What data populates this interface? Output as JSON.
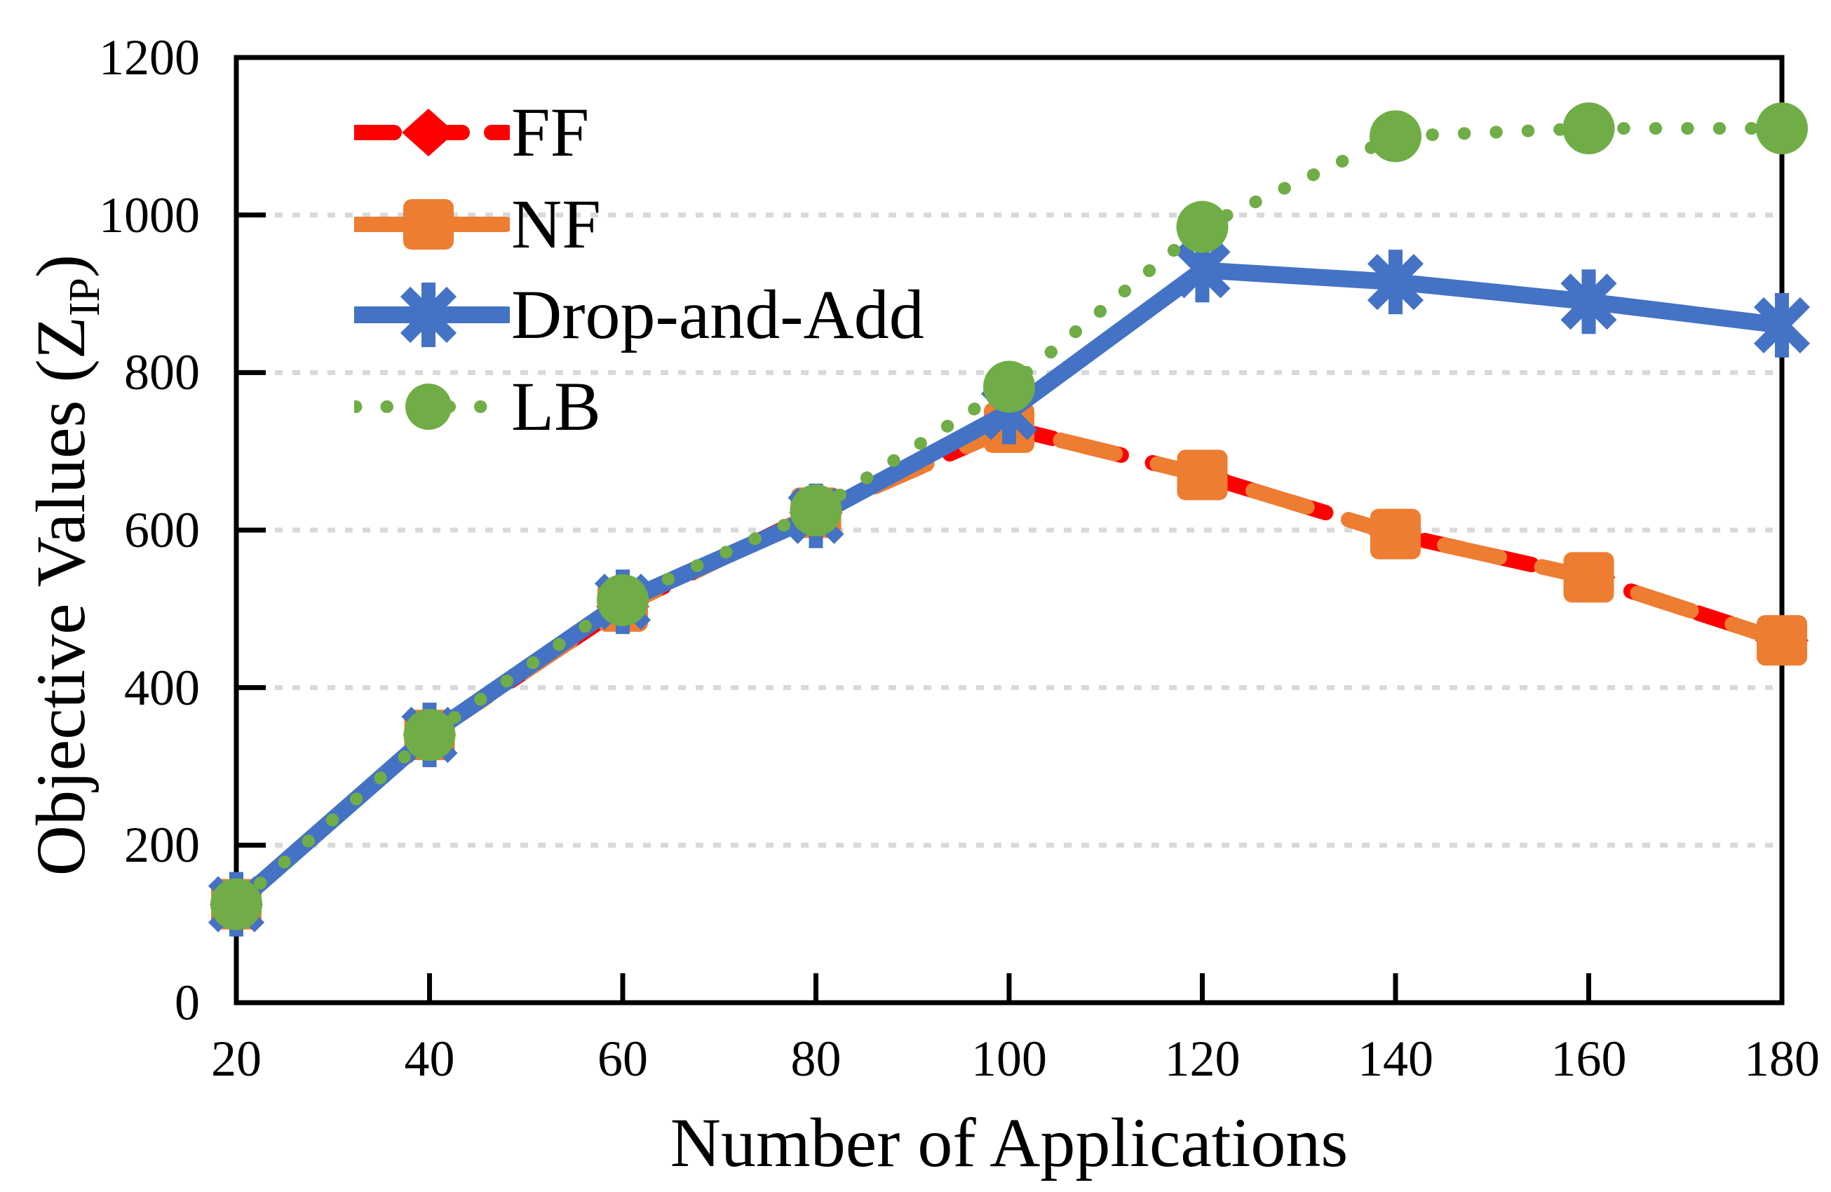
{
  "chart_data": {
    "type": "line",
    "title": "",
    "xlabel": "Number of Applications",
    "ylabel": "Objective Values (Z_IP)",
    "ylabel_parts": {
      "main": "Objective Values (Z",
      "sub": "IP",
      "close": ")"
    },
    "x": [
      20,
      40,
      60,
      80,
      100,
      120,
      140,
      160,
      180
    ],
    "x_tick_labels": [
      "20",
      "40",
      "60",
      "80",
      "100",
      "120",
      "140",
      "160",
      "180"
    ],
    "y_tick_values": [
      0,
      200,
      400,
      600,
      800,
      1000,
      1200
    ],
    "y_tick_labels": [
      "0",
      "200",
      "400",
      "600",
      "800",
      "1000",
      "1200"
    ],
    "gridline_values": [
      200,
      400,
      600,
      800,
      1000
    ],
    "xlim": [
      20,
      180
    ],
    "ylim": [
      0,
      1200
    ],
    "grid": "horizontal-dotted",
    "legend_position": "top-left-inside",
    "axis_color": "#000000",
    "gridline_color": "#D9D9D9",
    "background_color": "#FFFFFF",
    "series": [
      {
        "name": "FF",
        "color": "#FF0000",
        "line_style": "dashed",
        "marker": "diamond",
        "values": [
          125,
          340,
          503,
          622,
          730,
          670,
          595,
          540,
          460
        ]
      },
      {
        "name": "NF",
        "color": "#ED7D31",
        "line_style": "long-dashed",
        "marker": "square",
        "values": [
          125,
          340,
          503,
          622,
          730,
          670,
          595,
          540,
          460
        ]
      },
      {
        "name": "Drop-and-Add",
        "color": "#4472C4",
        "line_style": "solid",
        "marker": "asterisk",
        "values": [
          125,
          340,
          509,
          618,
          750,
          930,
          915,
          890,
          860
        ]
      },
      {
        "name": "LB",
        "color": "#70AD47",
        "line_style": "dotted",
        "marker": "circle",
        "values": [
          125,
          340,
          511,
          625,
          782,
          985,
          1100,
          1110,
          1110
        ]
      }
    ]
  }
}
